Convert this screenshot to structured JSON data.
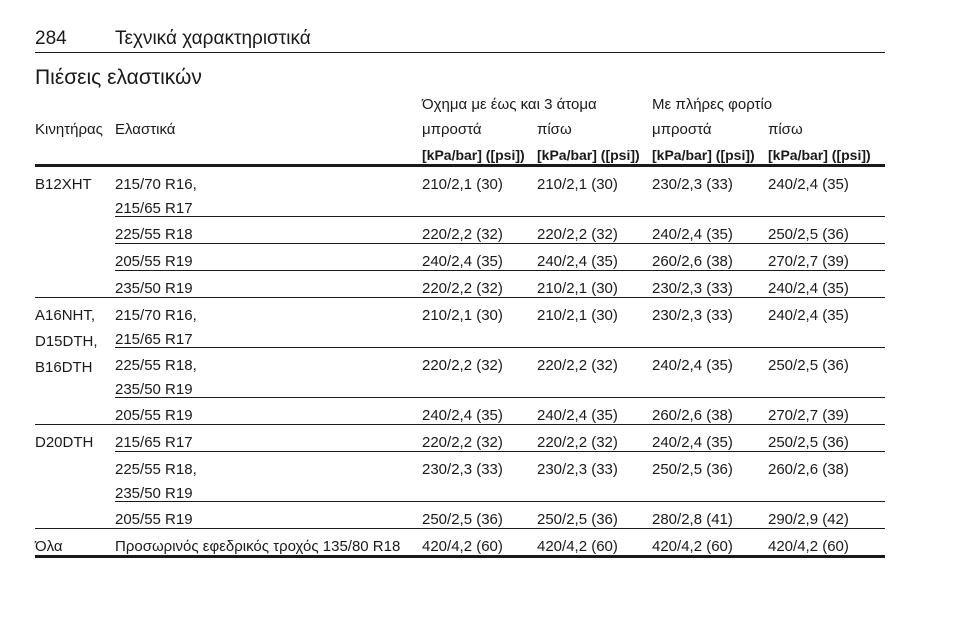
{
  "header": {
    "page_number": "284",
    "title": "Τεχνικά χαρακτηριστικά"
  },
  "section_title": "Πιέσεις ελαστικών",
  "table": {
    "group_headers": [
      "Όχημα με έως και 3 άτομα",
      "Με πλήρες φορτίο"
    ],
    "columns": [
      "Κινητήρας",
      "Ελαστικά",
      "μπροστά",
      "πίσω",
      "μπροστά",
      "πίσω"
    ],
    "units": [
      "[kPa/bar] ([psi])",
      "[kPa/bar] ([psi])",
      "[kPa/bar] ([psi])",
      "[kPa/bar] ([psi])"
    ],
    "groups": [
      {
        "engine": [
          "B12XHT"
        ],
        "rows": [
          {
            "tyre": [
              "215/70 R16,",
              "215/65 R17"
            ],
            "values": [
              "210/2,1 (30)",
              "210/2,1 (30)",
              "230/2,3 (33)",
              "240/2,4 (35)"
            ]
          },
          {
            "tyre": [
              "225/55 R18"
            ],
            "values": [
              "220/2,2 (32)",
              "220/2,2 (32)",
              "240/2,4 (35)",
              "250/2,5 (36)"
            ]
          },
          {
            "tyre": [
              "205/55 R19"
            ],
            "values": [
              "240/2,4 (35)",
              "240/2,4 (35)",
              "260/2,6 (38)",
              "270/2,7 (39)"
            ]
          },
          {
            "tyre": [
              "235/50 R19"
            ],
            "values": [
              "220/2,2 (32)",
              "210/2,1 (30)",
              "230/2,3 (33)",
              "240/2,4 (35)"
            ]
          }
        ]
      },
      {
        "engine": [
          "A16NHT,",
          "D15DTH,",
          "B16DTH"
        ],
        "rows": [
          {
            "tyre": [
              "215/70 R16,",
              "215/65 R17"
            ],
            "values": [
              "210/2,1 (30)",
              "210/2,1 (30)",
              "230/2,3 (33)",
              "240/2,4 (35)"
            ]
          },
          {
            "tyre": [
              "225/55 R18,",
              "235/50 R19"
            ],
            "values": [
              "220/2,2 (32)",
              "220/2,2 (32)",
              "240/2,4 (35)",
              "250/2,5 (36)"
            ]
          },
          {
            "tyre": [
              "205/55 R19"
            ],
            "values": [
              "240/2,4 (35)",
              "240/2,4 (35)",
              "260/2,6 (38)",
              "270/2,7 (39)"
            ]
          }
        ]
      },
      {
        "engine": [
          "D20DTH"
        ],
        "rows": [
          {
            "tyre": [
              "215/65 R17"
            ],
            "values": [
              "220/2,2 (32)",
              "220/2,2 (32)",
              "240/2,4 (35)",
              "250/2,5 (36)"
            ]
          },
          {
            "tyre": [
              "225/55 R18,",
              "235/50 R19"
            ],
            "values": [
              "230/2,3 (33)",
              "230/2,3 (33)",
              "250/2,5 (36)",
              "260/2,6 (38)"
            ]
          },
          {
            "tyre": [
              "205/55 R19"
            ],
            "values": [
              "250/2,5 (36)",
              "250/2,5 (36)",
              "280/2,8 (41)",
              "290/2,9 (42)"
            ]
          }
        ]
      },
      {
        "engine": [
          "Όλα"
        ],
        "rows": [
          {
            "tyre": [
              "Προσωρινός εφεδρικός τροχός 135/80 R18"
            ],
            "values": [
              "420/4,2 (60)",
              "420/4,2 (60)",
              "420/4,2 (60)",
              "420/4,2 (60)"
            ]
          }
        ]
      }
    ]
  }
}
